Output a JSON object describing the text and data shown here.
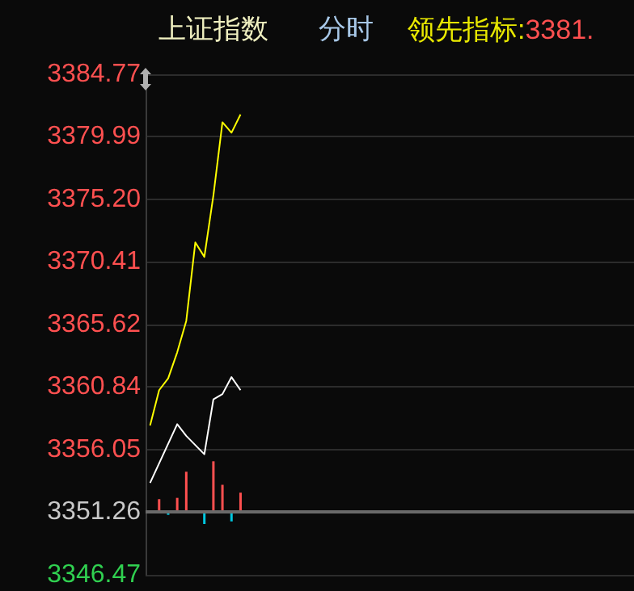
{
  "chart_data": {
    "type": "line",
    "title": "上证指数",
    "subtitle": "分时",
    "annotations": [
      "领先指标:3381."
    ],
    "categories": [
      null,
      null,
      null,
      null,
      null,
      null,
      null,
      null,
      null,
      null,
      null,
      null,
      null,
      null,
      null,
      null,
      null,
      null,
      null,
      null,
      null,
      null,
      null,
      null,
      null,
      null,
      null,
      null,
      null,
      null,
      null,
      null,
      null,
      null,
      null,
      null,
      null,
      null,
      null,
      null,
      null,
      null,
      null,
      null,
      null,
      null,
      null,
      null,
      null,
      null,
      null,
      null,
      null,
      null
    ],
    "ylim": [
      3346.47,
      3384.77
    ],
    "yticks": [
      3346.47,
      3351.26,
      3356.05,
      3360.84,
      3365.62,
      3370.41,
      {
        "value": 3375.2,
        "label": "3375.20"
      },
      3379.99,
      3384.77
    ],
    "grid": "y",
    "tick_labels": "y",
    "ref_lines": [
      {
        "axis": "y",
        "value": 3351.26,
        "color": "#6a6a6a"
      }
    ],
    "series": [
      {
        "color": "#ffff00",
        "values": [
          3357.9,
          3360.6,
          3361.5,
          3363.5,
          3365.9,
          3371.9,
          3370.8,
          3375.5,
          3381.1,
          3380.3,
          3381.7,
          null,
          null,
          null,
          null,
          null,
          null,
          null,
          null,
          null,
          null,
          null,
          null,
          null,
          null,
          null,
          null,
          null,
          null,
          null,
          null,
          null,
          null,
          null,
          null,
          null,
          null,
          null,
          null,
          null,
          null,
          null,
          null,
          null,
          null,
          null,
          null,
          null,
          null,
          null,
          null,
          null,
          null,
          null
        ]
      },
      {
        "color": "#ffffff",
        "values": [
          3353.5,
          null,
          null,
          3358.0,
          3357.1,
          null,
          3355.7,
          3359.9,
          3360.3,
          3361.6,
          3360.6,
          null,
          null,
          null,
          null,
          null,
          null,
          null,
          null,
          null,
          null,
          null,
          null,
          null,
          null,
          null,
          null,
          null,
          null,
          null,
          null,
          null,
          null,
          null,
          null,
          null,
          null,
          null,
          null,
          null,
          null,
          null,
          null,
          null,
          null,
          null,
          null,
          null,
          null,
          null,
          null,
          null,
          null,
          null
        ]
      },
      {
        "type": "bar",
        "base": [
          null,
          3351.26,
          3351.26,
          3351.26,
          3351.26,
          null,
          3351.26,
          3351.26,
          3351.26,
          3351.26,
          3351.26,
          null,
          null,
          null,
          null,
          null,
          null,
          null,
          null,
          null,
          null,
          null,
          null,
          null,
          null,
          null,
          null,
          null,
          null,
          null,
          null,
          null,
          null,
          null,
          null,
          null,
          null,
          null,
          null,
          null,
          null,
          null,
          null,
          null,
          null,
          null,
          null,
          null,
          null,
          null,
          null,
          null,
          null,
          null
        ],
        "values": [
          null,
          1.0,
          -0.2,
          1.1,
          3.1,
          null,
          -0.9,
          3.9,
          2.1,
          -0.7,
          1.5,
          null,
          null,
          null,
          null,
          null,
          null,
          null,
          null,
          null,
          null,
          null,
          null,
          null,
          null,
          null,
          null,
          null,
          null,
          null,
          null,
          null,
          null,
          null,
          null,
          null,
          null,
          null,
          null,
          null,
          null,
          null,
          null,
          null,
          null,
          null,
          null,
          null,
          null,
          null,
          null,
          null,
          null,
          null
        ],
        "colors": [
          null,
          "#ff5050",
          "#00c8e0",
          "#ff5050",
          "#ff5050",
          null,
          "#00c8e0",
          "#ff5050",
          "#ff5050",
          "#00c8e0",
          "#ff5050",
          null,
          null,
          null,
          null,
          null,
          null,
          null,
          null,
          null,
          null,
          null,
          null,
          null,
          null,
          null,
          null,
          null,
          null,
          null,
          null,
          null,
          null,
          null,
          null,
          null,
          null,
          null,
          null,
          null,
          null,
          null,
          null,
          null,
          null,
          null,
          null,
          null,
          null,
          null,
          null,
          null,
          null,
          null
        ]
      }
    ]
  }
}
